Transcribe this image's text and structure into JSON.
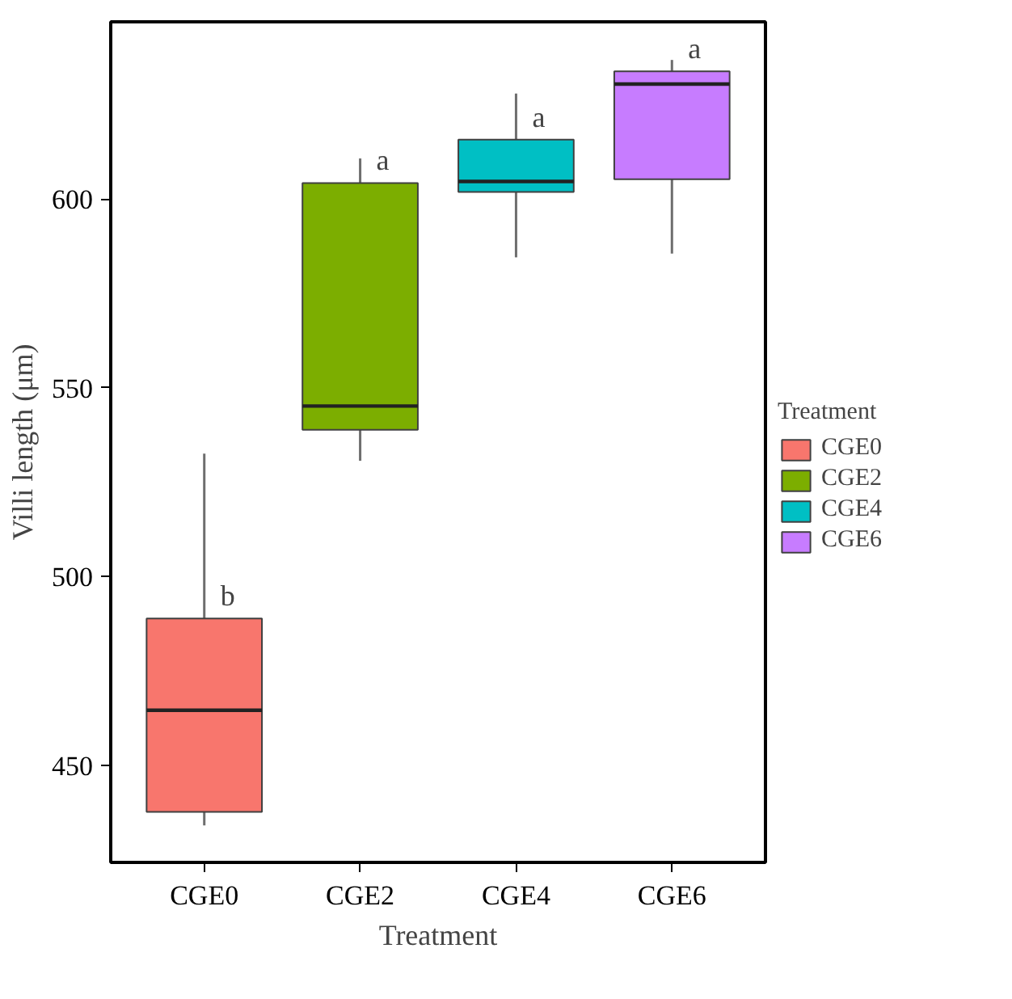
{
  "chart_data": {
    "type": "box",
    "xlabel": "Treatment",
    "ylabel": "Villi length (μm)",
    "legend_title": "Treatment",
    "legend": "right",
    "grid": false,
    "categories": [
      "CGE0",
      "CGE2",
      "CGE4",
      "CGE6"
    ],
    "series": [
      {
        "name": "CGE0",
        "color": "#f8766d",
        "boxes": [
          {
            "low": 434.1,
            "q1": 437.7,
            "median": 464.6,
            "q3": 488.9,
            "high": 532.6
          },
          null,
          null,
          null
        ]
      },
      {
        "name": "CGE2",
        "color": "#7cae00",
        "boxes": [
          null,
          {
            "low": 530.7,
            "q1": 538.9,
            "median": 545.2,
            "q3": 604.3,
            "high": 610.8
          },
          null,
          null
        ]
      },
      {
        "name": "CGE4",
        "color": "#00bfc4",
        "boxes": [
          null,
          null,
          {
            "low": 584.6,
            "q1": 601.9,
            "median": 604.7,
            "q3": 615.8,
            "high": 628.0
          },
          null
        ]
      },
      {
        "name": "CGE6",
        "color": "#c77cff",
        "boxes": [
          null,
          null,
          null,
          {
            "low": 585.6,
            "q1": 605.3,
            "median": 630.5,
            "q3": 633.9,
            "high": 636.9
          }
        ]
      }
    ],
    "ylim": [
      424.3,
      647
    ],
    "yticks": [
      450,
      500,
      550,
      600
    ],
    "annotations": [
      {
        "text": "b",
        "x": "CGE0",
        "y": 488.9
      },
      {
        "text": "a",
        "x": "CGE2",
        "y": 604.3
      },
      {
        "text": "a",
        "x": "CGE4",
        "y": 615.8
      },
      {
        "text": "a",
        "x": "CGE6",
        "y": 633.9
      }
    ]
  }
}
